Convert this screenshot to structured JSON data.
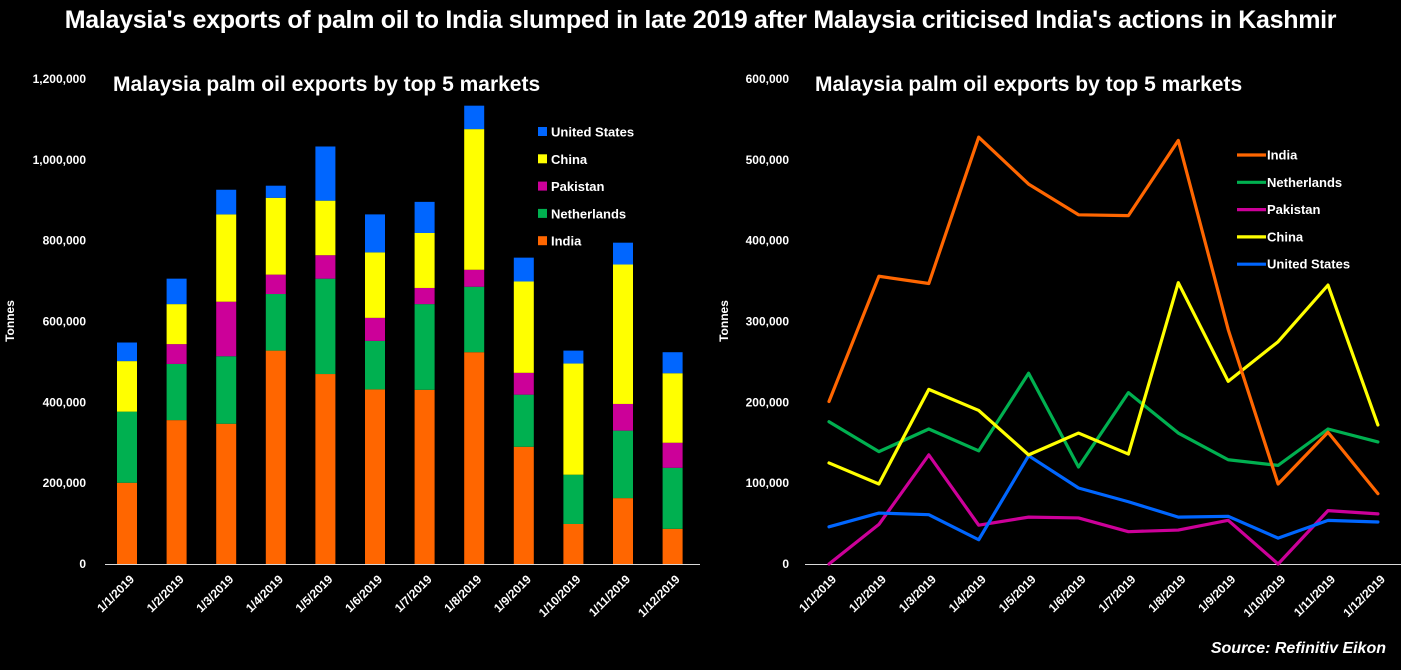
{
  "title": "Malaysia's exports of palm oil to India slumped in late 2019 after Malaysia criticised India's actions in Kashmir",
  "source": "Source: Refinitiv Eikon",
  "colors": {
    "India": "#FF6600",
    "Netherlands": "#00B050",
    "Pakistan": "#CC0099",
    "China": "#FFFF00",
    "United States": "#0066FF"
  },
  "chart_data": [
    {
      "type": "bar",
      "stacked": true,
      "title": "Malaysia palm oil exports by top 5 markets",
      "xlabel": "",
      "ylabel": "Tonnes",
      "ylim": [
        0,
        1200000
      ],
      "yticks": [
        0,
        200000,
        400000,
        600000,
        800000,
        1000000,
        1200000
      ],
      "ytick_labels": [
        "0",
        "200,000",
        "400,000",
        "600,000",
        "800,000",
        "1,000,000",
        "1,200,000"
      ],
      "grid": false,
      "legend_position": "top-right",
      "legend_order": [
        "United States",
        "China",
        "Pakistan",
        "Netherlands",
        "India"
      ],
      "categories": [
        "1/1/2019",
        "1/2/2019",
        "1/3/2019",
        "1/4/2019",
        "1/5/2019",
        "1/6/2019",
        "1/7/2019",
        "1/8/2019",
        "1/9/2019",
        "1/10/2019",
        "1/11/2019",
        "1/12/2019"
      ],
      "series": [
        {
          "name": "India",
          "values": [
            201000,
            356000,
            347000,
            528000,
            470000,
            432000,
            431000,
            524000,
            290000,
            99000,
            163000,
            87000
          ]
        },
        {
          "name": "Netherlands",
          "values": [
            176000,
            139000,
            167000,
            140000,
            236000,
            120000,
            212000,
            162000,
            129000,
            122000,
            167000,
            151000
          ]
        },
        {
          "name": "Pakistan",
          "values": [
            0,
            49000,
            135000,
            48000,
            58000,
            57000,
            40000,
            42000,
            54000,
            0,
            66000,
            62000
          ]
        },
        {
          "name": "China",
          "values": [
            125000,
            99000,
            216000,
            190000,
            135000,
            162000,
            136000,
            348000,
            226000,
            275000,
            345000,
            172000
          ]
        },
        {
          "name": "United States",
          "values": [
            46000,
            63000,
            61000,
            30000,
            134000,
            94000,
            77000,
            58000,
            59000,
            32000,
            54000,
            52000
          ]
        }
      ]
    },
    {
      "type": "line",
      "title": "Malaysia palm oil exports by top 5 markets",
      "xlabel": "",
      "ylabel": "Tonnes",
      "ylim": [
        0,
        600000
      ],
      "yticks": [
        0,
        100000,
        200000,
        300000,
        400000,
        500000,
        600000
      ],
      "ytick_labels": [
        "0",
        "100,000",
        "200,000",
        "300,000",
        "400,000",
        "500,000",
        "600,000"
      ],
      "grid": false,
      "legend_position": "top-right",
      "legend_order": [
        "India",
        "Netherlands",
        "Pakistan",
        "China",
        "United States"
      ],
      "categories": [
        "1/1/2019",
        "1/2/2019",
        "1/3/2019",
        "1/4/2019",
        "1/5/2019",
        "1/6/2019",
        "1/7/2019",
        "1/8/2019",
        "1/9/2019",
        "1/10/2019",
        "1/11/2019",
        "1/12/2019"
      ],
      "series": [
        {
          "name": "India",
          "values": [
            201000,
            356000,
            347000,
            528000,
            470000,
            432000,
            431000,
            524000,
            290000,
            99000,
            163000,
            87000
          ]
        },
        {
          "name": "Netherlands",
          "values": [
            176000,
            139000,
            167000,
            140000,
            236000,
            120000,
            212000,
            162000,
            129000,
            122000,
            167000,
            151000
          ]
        },
        {
          "name": "Pakistan",
          "values": [
            0,
            49000,
            135000,
            48000,
            58000,
            57000,
            40000,
            42000,
            54000,
            0,
            66000,
            62000
          ]
        },
        {
          "name": "China",
          "values": [
            125000,
            99000,
            216000,
            190000,
            135000,
            162000,
            136000,
            348000,
            226000,
            275000,
            345000,
            172000
          ]
        },
        {
          "name": "United States",
          "values": [
            46000,
            63000,
            61000,
            30000,
            134000,
            94000,
            77000,
            58000,
            59000,
            32000,
            54000,
            52000
          ]
        }
      ]
    }
  ]
}
